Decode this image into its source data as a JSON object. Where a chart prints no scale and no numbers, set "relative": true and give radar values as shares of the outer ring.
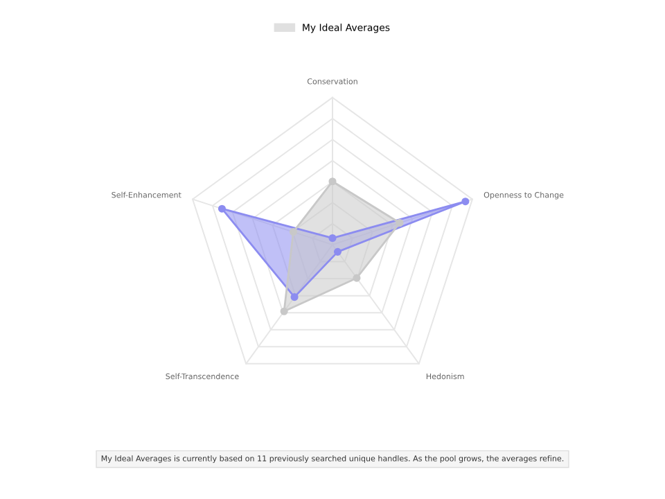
{
  "chart_data": {
    "type": "radar",
    "relative": true,
    "categories": [
      "Conservation",
      "Openness to Change",
      "Hedonism",
      "Self-Transcendence",
      "Self-Enhancement"
    ],
    "series": [
      {
        "color": "#8c8cf0",
        "values": [
          0.045,
          0.95,
          0.06,
          0.44,
          0.79
        ]
      },
      {
        "name": "My Ideal Averages",
        "color": "#c8c8c8",
        "values": [
          0.43,
          0.48,
          0.28,
          0.56,
          0.28
        ]
      }
    ],
    "grid": true,
    "legend": "top",
    "marker": "circle",
    "annotations": [
      "My Ideal Averages is currently based on 11 previously searched unique handles. As the pool grows, the averages refine."
    ]
  }
}
